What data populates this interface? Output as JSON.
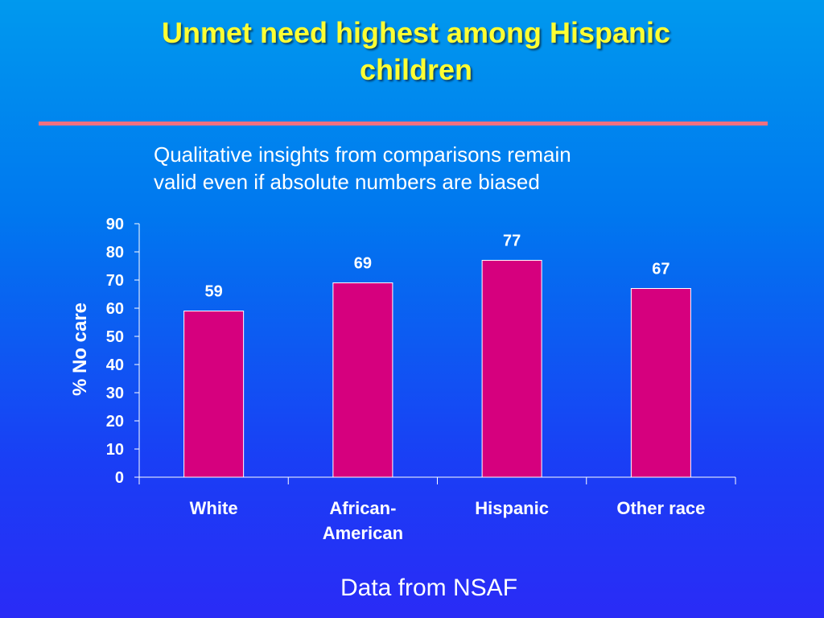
{
  "slide": {
    "title_lines": [
      "Unmet need highest among Hispanic",
      "children"
    ],
    "subtitle_lines": [
      "Qualitative insights from comparisons remain",
      "valid even if absolute numbers are biased"
    ],
    "footer": "Data from NSAF"
  },
  "colors": {
    "title": "#ffff33",
    "divider": "#ef7080",
    "bar": "#d6007e",
    "text": "#ffffff"
  },
  "chart_data": {
    "type": "bar",
    "categories": [
      [
        "White"
      ],
      [
        "African-",
        "American"
      ],
      [
        "Hispanic"
      ],
      [
        "Other race"
      ]
    ],
    "values": [
      59,
      69,
      77,
      67
    ],
    "data_labels": [
      "59",
      "69",
      "77",
      "67"
    ],
    "ylabel": "% No care",
    "xlabel": "",
    "ylim": [
      0,
      90
    ],
    "yticks": [
      0,
      10,
      20,
      30,
      40,
      50,
      60,
      70,
      80,
      90
    ],
    "grid": false,
    "legend": "none"
  }
}
